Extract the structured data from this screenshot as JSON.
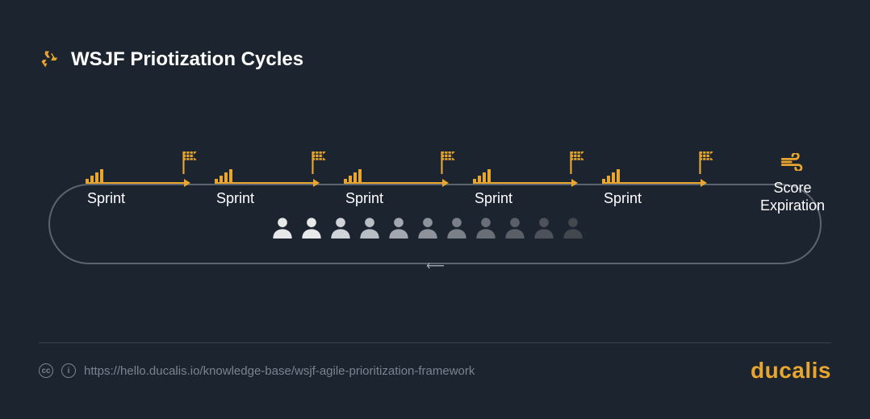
{
  "header": {
    "title": "WSJF Priotization Cycles",
    "icon_name": "recycle-icon",
    "icon_color": "#e8a62e"
  },
  "diagram": {
    "accent_color": "#e8a62e",
    "track_border_color": "#5b6470",
    "background_color": "#1c2430",
    "sprint_label": "Sprint",
    "sprint_count": 5,
    "score_title_line1": "Score",
    "score_title_line2": "Expiration",
    "score_icon_name": "wind-icon",
    "people": [
      {
        "color": "#e8e8e8"
      },
      {
        "color": "#e8e8e8"
      },
      {
        "color": "#d0d3d8"
      },
      {
        "color": "#b9bdc4"
      },
      {
        "color": "#a3a8b0"
      },
      {
        "color": "#8d929b"
      },
      {
        "color": "#7a7f88"
      },
      {
        "color": "#696e77"
      },
      {
        "color": "#5a5f67"
      },
      {
        "color": "#4d5159"
      },
      {
        "color": "#43474e"
      }
    ],
    "return_arrow_glyph": "⟵"
  },
  "footer": {
    "cc_label": "cc",
    "info_label": "i",
    "url": "https://hello.ducalis.io/knowledge-base/wsjf-agile-prioritization-framework",
    "brand": "ducalis",
    "brand_color": "#e8a62e",
    "divider_color": "#3a424e",
    "text_color": "#7b8390"
  }
}
